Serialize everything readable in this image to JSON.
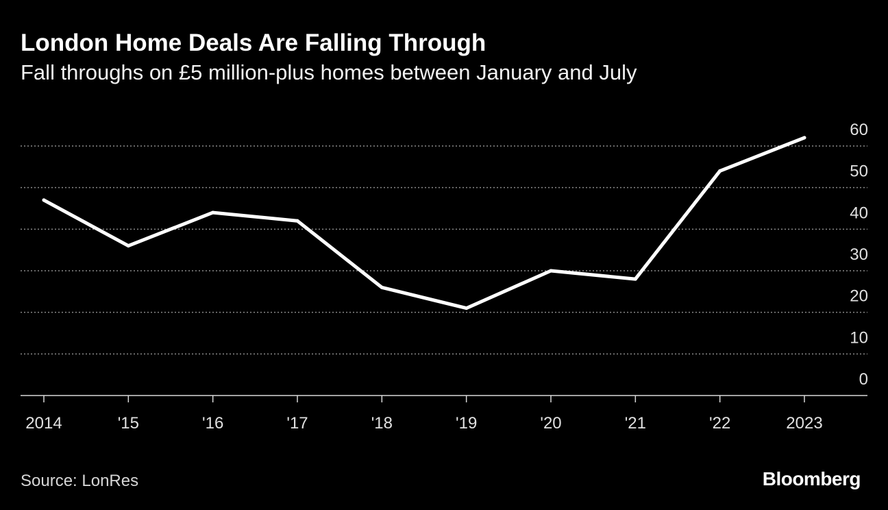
{
  "header": {
    "title": "London Home Deals Are Falling Through",
    "subtitle": "Fall throughs on £5 million-plus homes between January and July"
  },
  "footer": {
    "source": "Source: LonRes",
    "brand": "Bloomberg"
  },
  "colors": {
    "background": "#000000",
    "line": "#ffffff",
    "grid": "#8a8a8a",
    "text": "#ffffff"
  },
  "chart_data": {
    "type": "line",
    "title": "London Home Deals Are Falling Through",
    "subtitle": "Fall throughs on £5 million-plus homes between January and July",
    "xlabel": "",
    "ylabel": "",
    "categories": [
      "2014",
      "'15",
      "'16",
      "'17",
      "'18",
      "'19",
      "'20",
      "'21",
      "'22",
      "2023"
    ],
    "series": [
      {
        "name": "Fall throughs",
        "values": [
          47,
          36,
          44,
          42,
          26,
          21,
          30,
          28,
          54,
          62
        ]
      }
    ],
    "ylim": [
      0,
      60
    ],
    "yticks": [
      0,
      10,
      20,
      30,
      40,
      50,
      60
    ],
    "ytick_labels": [
      "0",
      "10",
      "20",
      "30",
      "40",
      "50",
      "60"
    ],
    "grid": true,
    "y_axis_side": "right",
    "source": "Source: LonRes"
  }
}
